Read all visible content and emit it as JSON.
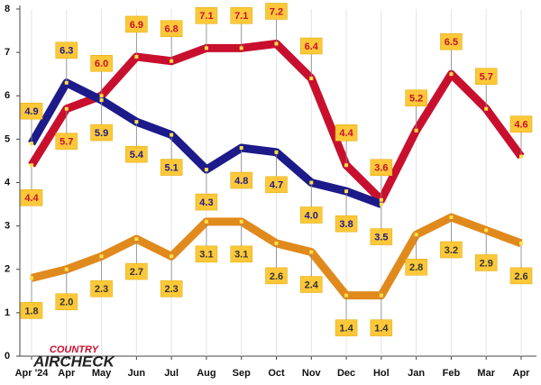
{
  "chart_data": {
    "type": "line",
    "categories": [
      "Apr '24",
      "Apr",
      "May",
      "Jun",
      "Jul",
      "Aug",
      "Sep",
      "Oct",
      "Nov",
      "Dec",
      "Hol",
      "Jan",
      "Feb",
      "Mar",
      "Apr"
    ],
    "series": [
      {
        "color": "#c8102e",
        "values": [
          4.4,
          5.7,
          6.0,
          6.9,
          6.8,
          7.1,
          7.1,
          7.2,
          6.4,
          4.4,
          3.6,
          5.2,
          6.5,
          5.7,
          4.6
        ],
        "value_labels": [
          "4.4",
          "5.7",
          "6.0",
          "6.9",
          "6.8",
          "7.1",
          "7.1",
          "7.2",
          "6.4",
          "4.4",
          "3.6",
          "5.2",
          "6.5",
          "5.7",
          "4.6"
        ]
      },
      {
        "color": "#1d1a8a",
        "values": [
          4.9,
          6.3,
          5.9,
          5.4,
          5.1,
          4.3,
          4.8,
          4.7,
          4.0,
          3.8,
          3.5,
          null,
          null,
          null,
          null
        ],
        "value_labels": [
          "4.9",
          "6.3",
          "5.9",
          "5.4",
          "5.1",
          "4.3",
          "4.8",
          "4.7",
          "4.0",
          "3.8",
          "3.5",
          null,
          null,
          null,
          null
        ]
      },
      {
        "color": "#e08a1e",
        "values": [
          1.8,
          2.0,
          2.3,
          2.7,
          2.3,
          3.1,
          3.1,
          2.6,
          2.4,
          1.4,
          1.4,
          2.8,
          3.2,
          2.9,
          2.6
        ],
        "value_labels": [
          "1.8",
          "2.0",
          "2.3",
          "2.7",
          "2.3",
          "3.1",
          "3.1",
          "2.6",
          "2.4",
          "1.4",
          "1.4",
          "2.8",
          "3.2",
          "2.9",
          "2.6"
        ]
      }
    ],
    "ylim": [
      0,
      8
    ],
    "yticks": [
      0,
      1,
      2,
      3,
      4,
      5,
      6,
      7,
      8
    ],
    "grid": true,
    "logo": {
      "top": "COUNTRY",
      "bottom": "AIRCHECK"
    }
  }
}
